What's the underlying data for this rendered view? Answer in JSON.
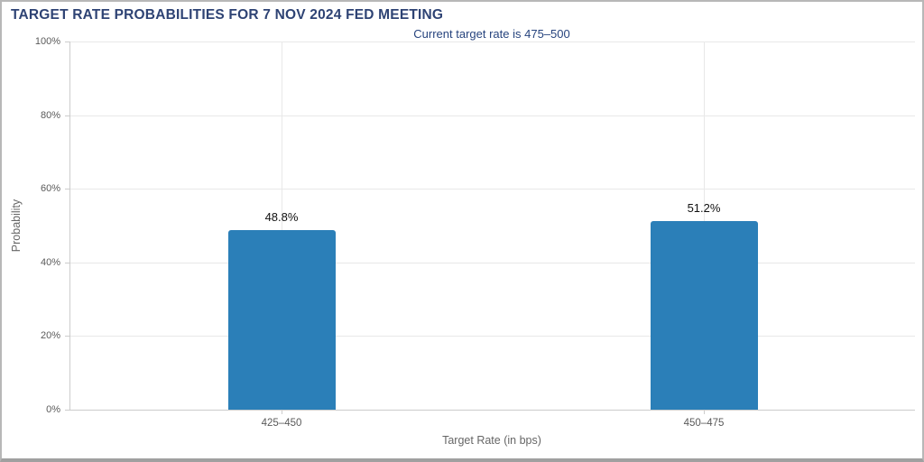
{
  "chart_data": {
    "type": "bar",
    "title": "TARGET RATE PROBABILITIES FOR 7 NOV 2024 FED MEETING",
    "subtitle": "Current target rate is 475–500",
    "xlabel": "Target Rate (in bps)",
    "ylabel": "Probability",
    "categories": [
      "425–450",
      "450–475"
    ],
    "values": [
      48.8,
      51.2
    ],
    "value_labels": [
      "48.8%",
      "51.2%"
    ],
    "ylim": [
      0,
      100
    ],
    "yticks": [
      {
        "value": 0,
        "label": "0%"
      },
      {
        "value": 20,
        "label": "20%"
      },
      {
        "value": 40,
        "label": "40%"
      },
      {
        "value": 60,
        "label": "60%"
      },
      {
        "value": 80,
        "label": "80%"
      },
      {
        "value": 100,
        "label": "100%"
      }
    ],
    "grid": true,
    "legend": false,
    "gridlines": {
      "horizontal": "every 20%",
      "vertical": "at category centers"
    },
    "colors": {
      "bar": "#2b7fb8",
      "title": "#2e4374",
      "subtitle": "#27447e",
      "grid": "#e8e8e8",
      "axis": "#cccccc",
      "tick_label": "#5a5a5a",
      "axis_title": "#666666",
      "value_label": "#111111"
    }
  }
}
